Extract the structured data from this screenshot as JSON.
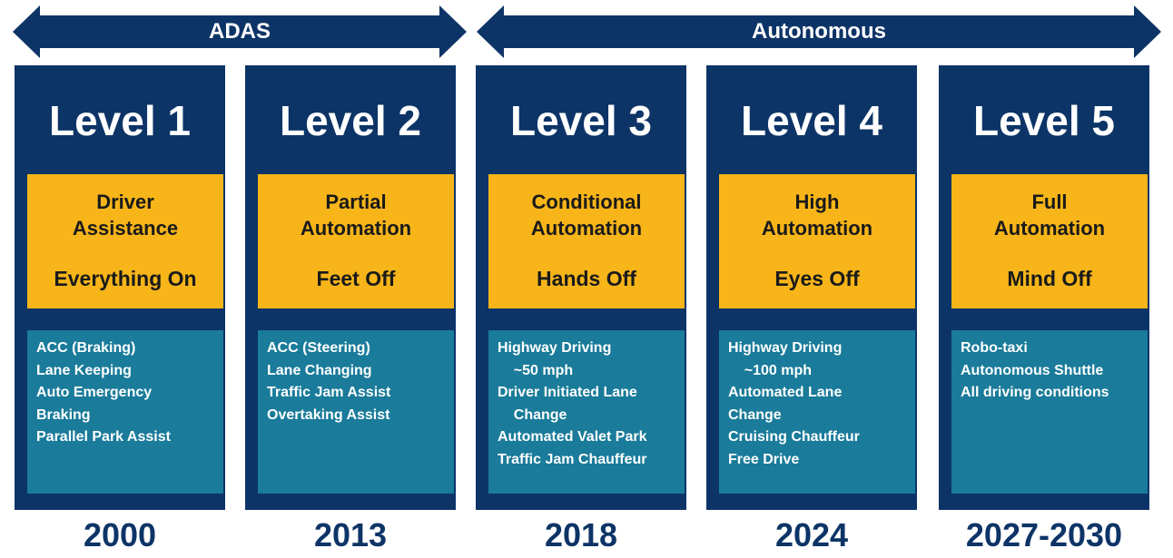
{
  "colors": {
    "navy": "#0d3467",
    "amber": "#f7b519",
    "teal": "#1a7b9a",
    "white": "#ffffff"
  },
  "arrows": {
    "adas": "ADAS",
    "autonomous": "Autonomous"
  },
  "levels": [
    {
      "title": "Level 1",
      "mode": [
        "Driver",
        "Assistance"
      ],
      "tagline": "Everything On",
      "features": [
        "ACC (Braking)",
        "Lane Keeping",
        "Auto Emergency",
        "Braking",
        "Parallel Park Assist"
      ],
      "year": "2000"
    },
    {
      "title": "Level 2",
      "mode": [
        "Partial",
        "Automation"
      ],
      "tagline": "Feet Off",
      "features": [
        "ACC (Steering)",
        "Lane Changing",
        "Traffic Jam Assist",
        "Overtaking Assist"
      ],
      "year": "2013"
    },
    {
      "title": "Level 3",
      "mode": [
        "Conditional",
        "Automation"
      ],
      "tagline": "Hands Off",
      "features": [
        "Highway Driving",
        "    ~50 mph",
        "Driver Initiated Lane",
        "    Change",
        "Automated Valet Park",
        "Traffic Jam Chauffeur"
      ],
      "year": "2018"
    },
    {
      "title": "Level 4",
      "mode": [
        "High",
        "Automation"
      ],
      "tagline": "Eyes Off",
      "features": [
        "Highway Driving",
        "    ~100 mph",
        "Automated Lane",
        "Change",
        "Cruising Chauffeur",
        "Free Drive"
      ],
      "year": "2024"
    },
    {
      "title": "Level 5",
      "mode": [
        "Full",
        "Automation"
      ],
      "tagline": "Mind Off",
      "features": [
        "Robo-taxi",
        "Autonomous Shuttle",
        "All driving conditions"
      ],
      "year": "2027-2030"
    }
  ]
}
